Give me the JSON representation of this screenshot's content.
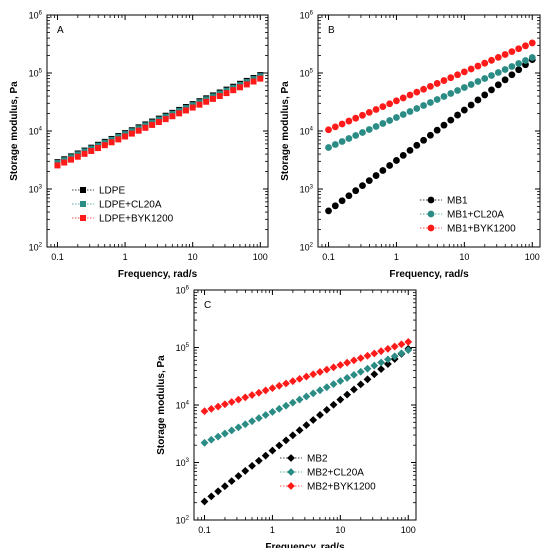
{
  "chart_data": [
    {
      "type": "scatter",
      "panel_label": "A",
      "xlabel": "Frequency, rad/s",
      "ylabel": "Storage modulus, Pa",
      "xscale": "log",
      "yscale": "log",
      "xlim": [
        0.07,
        130
      ],
      "ylim": [
        100,
        1000000
      ],
      "xticks": [
        {
          "v": 0.1,
          "t": "0.1"
        },
        {
          "v": 1,
          "t": "1"
        },
        {
          "v": 10,
          "t": "10"
        },
        {
          "v": 100,
          "t": "100"
        }
      ],
      "yticks": [
        {
          "v": 100,
          "e": "2"
        },
        {
          "v": 1000,
          "e": "3"
        },
        {
          "v": 10000,
          "e": "4"
        },
        {
          "v": 100000,
          "e": "5"
        },
        {
          "v": 1000000,
          "e": "6"
        }
      ],
      "ytick_base": "10",
      "legend_position": "bottom-left",
      "series": [
        {
          "name": "LDPE",
          "color": "#000000",
          "marker": "square",
          "x0": 0.1,
          "x1": 100,
          "y0": 2900,
          "y1": 92000
        },
        {
          "name": "LDPE+CL20A",
          "color": "#2a8c84",
          "marker": "square",
          "x0": 0.1,
          "x1": 100,
          "y0": 2800,
          "y1": 88000
        },
        {
          "name": "LDPE+BYK1200",
          "color": "#ff1a1a",
          "marker": "square",
          "x0": 0.1,
          "x1": 100,
          "y0": 2550,
          "y1": 80000
        }
      ]
    },
    {
      "type": "scatter",
      "panel_label": "B",
      "xlabel": "Frequency, rad/s",
      "ylabel": "Storage modulus, Pa",
      "xscale": "log",
      "yscale": "log",
      "xlim": [
        0.07,
        130
      ],
      "ylim": [
        100,
        1000000
      ],
      "xticks": [
        {
          "v": 0.1,
          "t": "0.1"
        },
        {
          "v": 1,
          "t": "1"
        },
        {
          "v": 10,
          "t": "10"
        },
        {
          "v": 100,
          "t": "100"
        }
      ],
      "yticks": [
        {
          "v": 100,
          "e": "2"
        },
        {
          "v": 1000,
          "e": "3"
        },
        {
          "v": 10000,
          "e": "4"
        },
        {
          "v": 100000,
          "e": "5"
        },
        {
          "v": 1000000,
          "e": "6"
        }
      ],
      "ytick_base": "10",
      "legend_position": "bottom-right",
      "series": [
        {
          "name": "MB1",
          "color": "#000000",
          "marker": "circle",
          "x0": 0.1,
          "x1": 100,
          "y0": 420,
          "y1": 170000
        },
        {
          "name": "MB1+CL20A",
          "color": "#2a8c84",
          "marker": "circle",
          "x0": 0.1,
          "x1": 100,
          "y0": 5200,
          "y1": 185000
        },
        {
          "name": "MB1+BYK1200",
          "color": "#ff1a1a",
          "marker": "circle",
          "x0": 0.1,
          "x1": 100,
          "y0": 10500,
          "y1": 330000
        }
      ]
    },
    {
      "type": "scatter",
      "panel_label": "C",
      "xlabel": "Frequency, rad/s",
      "ylabel": "Storage modulus, Pa",
      "xscale": "log",
      "yscale": "log",
      "xlim": [
        0.07,
        130
      ],
      "ylim": [
        100,
        1000000
      ],
      "xticks": [
        {
          "v": 0.1,
          "t": "0.1"
        },
        {
          "v": 1,
          "t": "1"
        },
        {
          "v": 10,
          "t": "10"
        },
        {
          "v": 100,
          "t": "100"
        }
      ],
      "yticks": [
        {
          "v": 100,
          "e": "2"
        },
        {
          "v": 1000,
          "e": "3"
        },
        {
          "v": 10000,
          "e": "4"
        },
        {
          "v": 100000,
          "e": "5"
        },
        {
          "v": 1000000,
          "e": "6"
        }
      ],
      "ytick_base": "10",
      "legend_position": "bottom-right",
      "series": [
        {
          "name": "MB2",
          "color": "#000000",
          "marker": "diamond",
          "x0": 0.1,
          "x1": 100,
          "y0": 210,
          "y1": 95000
        },
        {
          "name": "MB2+CL20A",
          "color": "#2a8c84",
          "marker": "diamond",
          "x0": 0.1,
          "x1": 100,
          "y0": 2200,
          "y1": 90000
        },
        {
          "name": "MB2+BYK1200",
          "color": "#ff1a1a",
          "marker": "diamond",
          "x0": 0.1,
          "x1": 100,
          "y0": 7800,
          "y1": 125000
        }
      ]
    }
  ]
}
